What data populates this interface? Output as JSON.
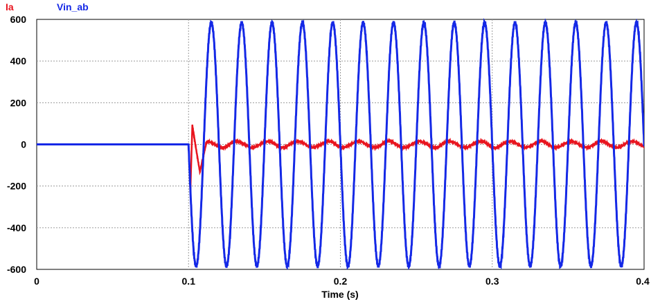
{
  "chart_data": {
    "type": "line",
    "title": "",
    "xlabel": "Time (s)",
    "ylabel": "",
    "xlim": [
      0,
      0.4
    ],
    "ylim": [
      -600,
      600
    ],
    "xticks": [
      0,
      0.1,
      0.2,
      0.3,
      0.4
    ],
    "xtick_labels": [
      "0",
      "0.1",
      "0.2",
      "0.3",
      "0.4"
    ],
    "yticks": [
      600,
      400,
      200,
      0,
      -200,
      -400,
      -600
    ],
    "ytick_labels": [
      "600",
      "400",
      "200",
      "0",
      "-200",
      "-400",
      "-600"
    ],
    "grid": true,
    "legend_position": "top-left",
    "series": [
      {
        "name": "Ia",
        "color": "#e8141e",
        "description_values": {
          "initial_value": 0,
          "step_time": 0.1,
          "transient_peaks": [
            {
              "t": 0.1,
              "v": -225
            },
            {
              "t": 0.1025,
              "v": 100
            },
            {
              "t": 0.1075,
              "v": -135
            }
          ],
          "steady_amplitude": 15,
          "frequency_hz": 50
        }
      },
      {
        "name": "Vin_ab",
        "color": "#1428e6",
        "description_values": {
          "initial_value": 0,
          "step_time": 0.1,
          "amplitude": 585,
          "frequency_hz": 50,
          "first_peak_t": 0.115
        }
      }
    ]
  }
}
